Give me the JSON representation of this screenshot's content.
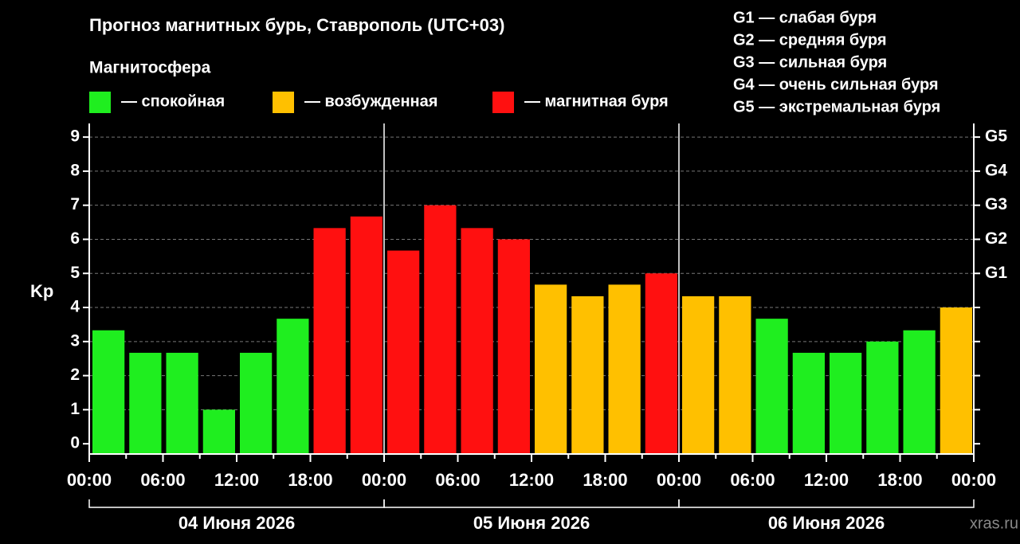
{
  "chart_data": {
    "type": "bar",
    "title": "Прогноз магнитных бурь, Ставрополь (UTC+03)",
    "legend_title": "Магнитосфера",
    "legend": [
      {
        "label": "— спокойная",
        "color": "#1fee1f"
      },
      {
        "label": "— возбужденная",
        "color": "#ffc000"
      },
      {
        "label": "— магнитная буря",
        "color": "#ff1010"
      }
    ],
    "g_legend": [
      "G1 — слабая буря",
      "G2 — средняя буря",
      "G3 — сильная буря",
      "G4 — очень сильная буря",
      "G5 — экстремальная буря"
    ],
    "y_label": "Kp",
    "categories": [
      null,
      null,
      null,
      null,
      null,
      null,
      null,
      null,
      null,
      null,
      null,
      null,
      null,
      null,
      null,
      null,
      null,
      null,
      null,
      null,
      null,
      null,
      null,
      null
    ],
    "values": [
      3.33,
      2.67,
      2.67,
      1,
      2.67,
      3.67,
      6.33,
      6.67,
      5.67,
      7,
      6.33,
      6,
      4.67,
      4.33,
      4.67,
      5,
      4.33,
      4.33,
      3.67,
      2.67,
      2.67,
      3,
      3.33,
      4
    ],
    "colors": [
      "#1fee1f",
      "#1fee1f",
      "#1fee1f",
      "#1fee1f",
      "#1fee1f",
      "#1fee1f",
      "#ff1010",
      "#ff1010",
      "#ff1010",
      "#ff1010",
      "#ff1010",
      "#ff1010",
      "#ffc000",
      "#ffc000",
      "#ffc000",
      "#ff1010",
      "#ffc000",
      "#ffc000",
      "#1fee1f",
      "#1fee1f",
      "#1fee1f",
      "#1fee1f",
      "#1fee1f",
      "#ffc000"
    ],
    "xtick_labels": [
      "00:00",
      "06:00",
      "12:00",
      "18:00",
      "00:00",
      "06:00",
      "12:00",
      "18:00",
      "00:00",
      "06:00",
      "12:00",
      "18:00",
      "00:00"
    ],
    "days": [
      "04 Июня 2026",
      "05 Июня 2026",
      "06 Июня 2026"
    ],
    "ylim": [
      -0.3,
      9.4
    ],
    "yticks": [
      0,
      1,
      2,
      3,
      4,
      5,
      6,
      7,
      8,
      9
    ],
    "y2lim": [
      -0.3,
      9.4
    ],
    "y2ticks": [
      {
        "value": 5,
        "label": "G1"
      },
      {
        "value": 6,
        "label": "G2"
      },
      {
        "value": 7,
        "label": "G3"
      },
      {
        "value": 8,
        "label": "G4"
      },
      {
        "value": 9,
        "label": "G5"
      }
    ],
    "grid": true,
    "watermark": "xras.ru"
  }
}
